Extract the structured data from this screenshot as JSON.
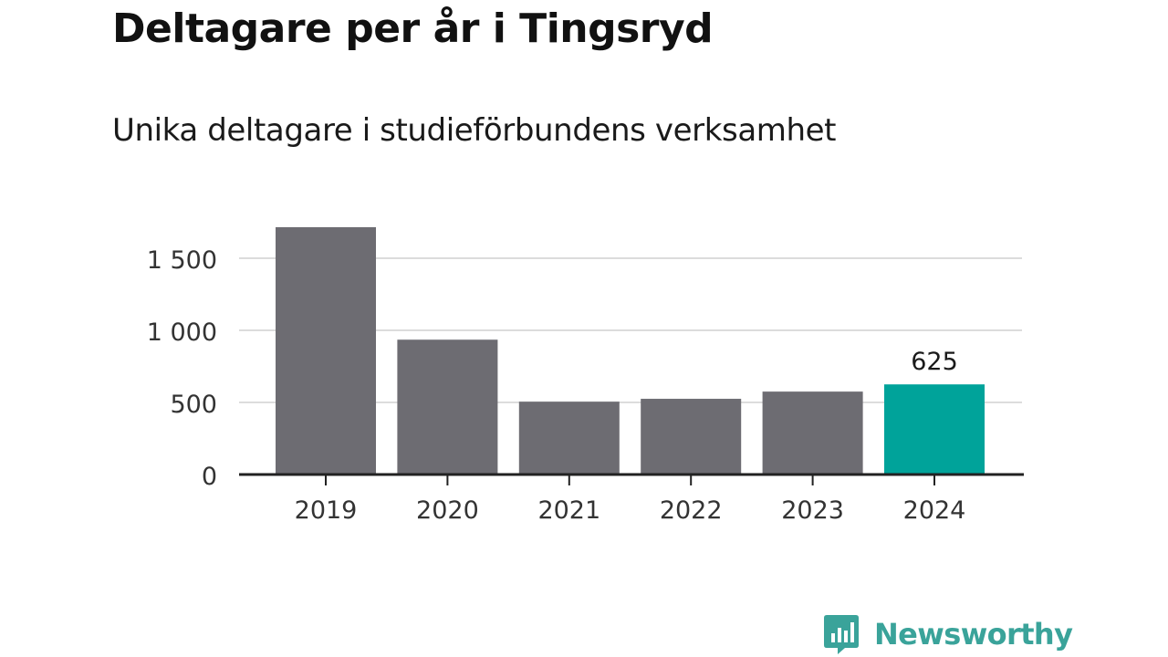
{
  "title": "Deltagare per år i Tingsryd",
  "subtitle": "Unika deltagare i studieförbundens verksamhet",
  "brand": {
    "name": "Newsworthy",
    "logo_icon": "bar-chart-speech-bubble-icon",
    "color": "#3aa39a"
  },
  "colors": {
    "bar": "#6d6c72",
    "highlight": "#00a39a",
    "grid": "#dcdcdc",
    "axis": "#222222"
  },
  "chart_data": {
    "type": "bar",
    "categories": [
      "2019",
      "2020",
      "2021",
      "2022",
      "2023",
      "2024"
    ],
    "values": [
      1715,
      935,
      505,
      525,
      575,
      625
    ],
    "highlight_index": 5,
    "data_labels": [
      {
        "index": 5,
        "text": "625"
      }
    ],
    "y_ticks": [
      0,
      500,
      1000,
      1500
    ],
    "y_tick_labels": [
      "0",
      "500",
      "1 000",
      "1 500"
    ],
    "ylim": [
      0,
      1715
    ],
    "grid": true,
    "xlabel": "",
    "ylabel": ""
  }
}
